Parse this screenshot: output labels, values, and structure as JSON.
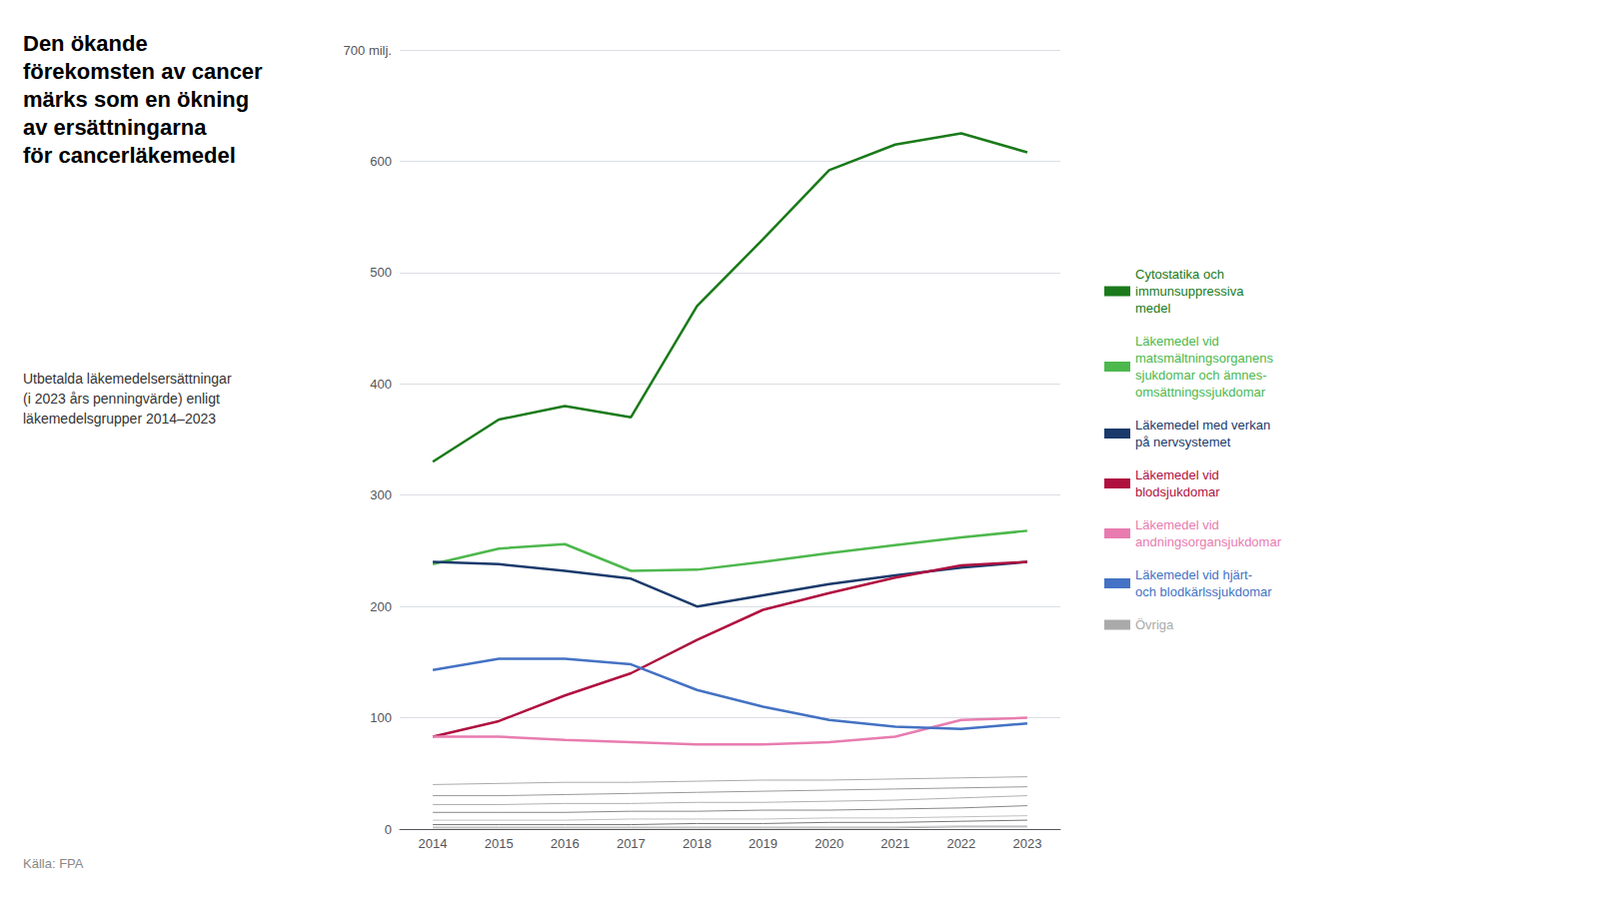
{
  "chart_data": {
    "type": "line",
    "title": "Den ökande\nförekomsten av cancer\nmärks som en ökning\nav ersättningarna\nför cancerläkemedel",
    "subtitle": "Utbetalda läkemedelsersättningar\n(i 2023 års penningvärde) enligt\nläkemedelsgrupper 2014–2023",
    "annotation": "Källa: FPA",
    "categories": [
      "2014",
      "2015",
      "2016",
      "2017",
      "2018",
      "2019",
      "2020",
      "2021",
      "2022",
      "2023"
    ],
    "series": [
      {
        "name": "Cytostatika och\nimmunsuppressiva\nmedel",
        "color": "#1a7a1a",
        "values": [
          330,
          368,
          380,
          370,
          470,
          530,
          592,
          615,
          625,
          608
        ]
      },
      {
        "name": "Läkemedel vid\nmatsmältningsorganens\nsjukdomar och ämnes-\nomsättningssjukdomar",
        "color": "#4db84d",
        "values": [
          238,
          252,
          256,
          232,
          233,
          240,
          248,
          255,
          262,
          268
        ]
      },
      {
        "name": "Läkemedel med verkan\npå nervsystemet",
        "color": "#1a3a6b",
        "values": [
          240,
          238,
          232,
          225,
          200,
          210,
          220,
          228,
          235,
          240
        ]
      },
      {
        "name": "Läkemedel vid\nblodsjukdomar",
        "color": "#b01040",
        "values": [
          83,
          97,
          120,
          140,
          170,
          197,
          212,
          226,
          237,
          240
        ]
      },
      {
        "name": "Läkemedel vid\nandningsorgansjukdomar",
        "color": "#e87cb0",
        "values": [
          83,
          83,
          80,
          78,
          76,
          76,
          78,
          83,
          98,
          100
        ]
      },
      {
        "name": "Läkemedel vid hjärt-\noch blodkärlssjukdomar",
        "color": "#4472c4",
        "values": [
          143,
          153,
          153,
          148,
          125,
          110,
          98,
          92,
          90,
          95
        ]
      },
      {
        "name": "Övriga",
        "color": "#aaaaaa",
        "values": [
          40,
          41,
          42,
          42,
          43,
          44,
          44,
          45,
          46,
          47
        ]
      },
      {
        "name": "Övriga",
        "color": "#999999",
        "values": [
          30,
          30,
          31,
          32,
          33,
          34,
          35,
          36,
          37,
          38
        ]
      },
      {
        "name": "Övriga",
        "color": "#b0b0b0",
        "values": [
          22,
          22,
          23,
          23,
          24,
          24,
          25,
          26,
          28,
          30
        ]
      },
      {
        "name": "Övriga",
        "color": "#888888",
        "values": [
          15,
          15,
          15,
          16,
          16,
          17,
          17,
          18,
          19,
          21
        ]
      },
      {
        "name": "Övriga",
        "color": "#c0c0c0",
        "values": [
          8,
          8,
          8,
          9,
          9,
          9,
          10,
          10,
          11,
          12
        ]
      },
      {
        "name": "Övriga",
        "color": "#777777",
        "values": [
          4,
          4,
          4,
          4,
          5,
          5,
          6,
          6,
          7,
          8
        ]
      },
      {
        "name": "Övriga",
        "color": "#d0d0d0",
        "values": [
          2,
          2,
          2,
          2,
          2,
          2,
          2,
          2,
          3,
          3
        ]
      },
      {
        "name": "Övriga",
        "color": "#aaaaaa",
        "values": [
          1,
          1,
          1,
          1,
          1,
          1,
          1,
          1,
          2,
          2
        ]
      }
    ],
    "ylim": [
      0,
      700
    ],
    "yticks": [
      0,
      100,
      200,
      300,
      400,
      500,
      600,
      {
        "value": 700,
        "label": "700 milj."
      }
    ],
    "grid": true,
    "legend": "right"
  }
}
